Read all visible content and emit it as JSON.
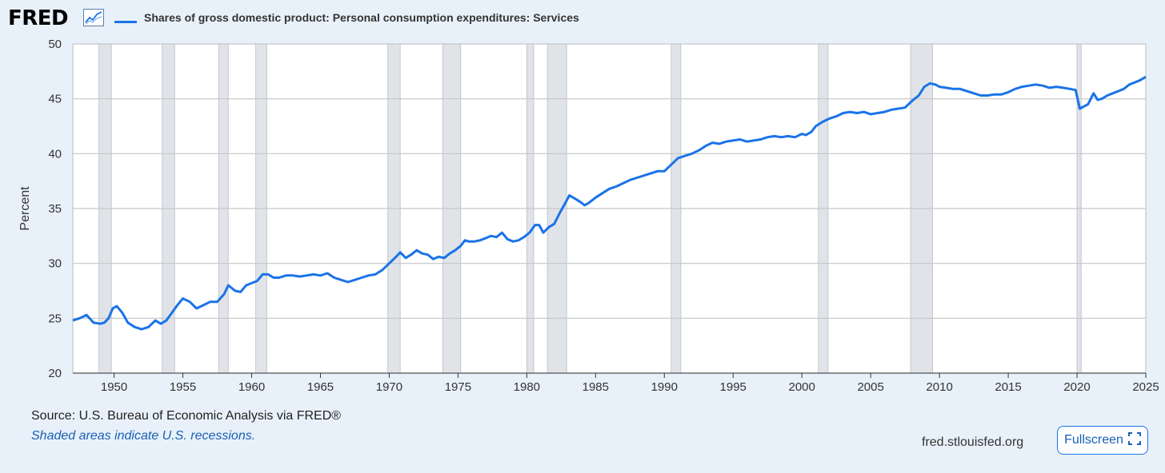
{
  "header": {
    "logo": "FRED",
    "series_title": "Shares of gross domestic product: Personal consumption expenditures: Services"
  },
  "footer": {
    "source": "Source: U.S. Bureau of Economic Analysis via FRED®",
    "recession_note": "Shaded areas indicate U.S. recessions.",
    "site": "fred.stlouisfed.org",
    "fullscreen_label": "Fullscreen"
  },
  "colors": {
    "line": "#1a73e8",
    "recession_fill": "#e0e4e9",
    "grid": "#c6c6c6",
    "background": "#e8f1fa"
  },
  "chart_data": {
    "type": "line",
    "title": "Shares of gross domestic product: Personal consumption expenditures: Services",
    "ylabel": "Percent",
    "xlim": [
      1947,
      2025
    ],
    "ylim": [
      20,
      50
    ],
    "y_ticks": [
      20,
      25,
      30,
      35,
      40,
      45,
      50
    ],
    "x_ticks": [
      1950,
      1955,
      1960,
      1965,
      1970,
      1975,
      1980,
      1985,
      1990,
      1995,
      2000,
      2005,
      2010,
      2015,
      2020,
      2025
    ],
    "grid": true,
    "recessions": [
      [
        1948.9,
        1949.8
      ],
      [
        1953.5,
        1954.4
      ],
      [
        1957.6,
        1958.3
      ],
      [
        1960.3,
        1961.1
      ],
      [
        1969.9,
        1970.8
      ],
      [
        1973.9,
        1975.2
      ],
      [
        1980.0,
        1980.5
      ],
      [
        1981.5,
        1982.9
      ],
      [
        1990.5,
        1991.2
      ],
      [
        2001.2,
        2001.9
      ],
      [
        2007.9,
        2009.5
      ],
      [
        2020.0,
        2020.3
      ]
    ],
    "series": [
      {
        "x": [
          1947.0,
          1947.5,
          1948.0,
          1948.5,
          1949.0,
          1949.3,
          1949.6,
          1949.9,
          1950.2,
          1950.6,
          1951.0,
          1951.5,
          1952.0,
          1952.5,
          1953.0,
          1953.4,
          1953.8,
          1954.2,
          1954.6,
          1955.0,
          1955.5,
          1956.0,
          1956.5,
          1957.0,
          1957.5,
          1958.0,
          1958.3,
          1958.8,
          1959.2,
          1959.6,
          1960.0,
          1960.4,
          1960.8,
          1961.2,
          1961.6,
          1962.0,
          1962.5,
          1963.0,
          1963.5,
          1964.0,
          1964.5,
          1965.0,
          1965.5,
          1966.0,
          1966.5,
          1967.0,
          1967.5,
          1968.0,
          1968.5,
          1969.0,
          1969.5,
          1970.0,
          1970.5,
          1970.8,
          1971.2,
          1971.6,
          1972.0,
          1972.4,
          1972.8,
          1973.2,
          1973.6,
          1974.0,
          1974.4,
          1974.8,
          1975.2,
          1975.5,
          1975.8,
          1976.2,
          1976.6,
          1977.0,
          1977.4,
          1977.8,
          1978.2,
          1978.6,
          1979.0,
          1979.4,
          1979.8,
          1980.2,
          1980.6,
          1980.9,
          1981.2,
          1981.6,
          1982.0,
          1982.4,
          1982.8,
          1983.1,
          1983.5,
          1983.9,
          1984.2,
          1984.5,
          1985.0,
          1985.5,
          1986.0,
          1986.5,
          1987.0,
          1987.5,
          1988.0,
          1988.5,
          1989.0,
          1989.5,
          1990.0,
          1990.5,
          1991.0,
          1991.5,
          1992.0,
          1992.5,
          1993.0,
          1993.5,
          1994.0,
          1994.5,
          1995.0,
          1995.5,
          1996.0,
          1996.5,
          1997.0,
          1997.5,
          1998.0,
          1998.5,
          1999.0,
          1999.5,
          2000.0,
          2000.3,
          2000.7,
          2001.0,
          2001.5,
          2002.0,
          2002.5,
          2003.0,
          2003.5,
          2004.0,
          2004.5,
          2005.0,
          2005.5,
          2006.0,
          2006.5,
          2007.0,
          2007.5,
          2008.0,
          2008.5,
          2008.9,
          2009.3,
          2009.7,
          2010.0,
          2010.5,
          2011.0,
          2011.5,
          2012.0,
          2012.5,
          2013.0,
          2013.5,
          2014.0,
          2014.5,
          2015.0,
          2015.5,
          2016.0,
          2016.5,
          2017.0,
          2017.5,
          2018.0,
          2018.5,
          2019.0,
          2019.5,
          2019.9,
          2020.2,
          2020.5,
          2020.8,
          2021.2,
          2021.5,
          2021.8,
          2022.2,
          2022.6,
          2023.0,
          2023.4,
          2023.8,
          2024.2,
          2024.6,
          2025.0
        ],
        "y": [
          24.8,
          25.0,
          25.3,
          24.6,
          24.5,
          24.6,
          25.0,
          25.9,
          26.1,
          25.5,
          24.6,
          24.2,
          24.0,
          24.2,
          24.8,
          24.5,
          24.8,
          25.5,
          26.2,
          26.8,
          26.5,
          25.9,
          26.2,
          26.5,
          26.5,
          27.2,
          28.0,
          27.5,
          27.4,
          28.0,
          28.2,
          28.4,
          29.0,
          29.0,
          28.7,
          28.7,
          28.9,
          28.9,
          28.8,
          28.9,
          29.0,
          28.9,
          29.1,
          28.7,
          28.5,
          28.3,
          28.5,
          28.7,
          28.9,
          29.0,
          29.4,
          30.0,
          30.6,
          31.0,
          30.5,
          30.8,
          31.2,
          30.9,
          30.8,
          30.4,
          30.6,
          30.5,
          30.9,
          31.2,
          31.6,
          32.1,
          32.0,
          32.0,
          32.1,
          32.3,
          32.5,
          32.4,
          32.8,
          32.2,
          32.0,
          32.1,
          32.4,
          32.8,
          33.5,
          33.5,
          32.8,
          33.3,
          33.6,
          34.6,
          35.5,
          36.2,
          35.9,
          35.6,
          35.3,
          35.5,
          36.0,
          36.4,
          36.8,
          37.0,
          37.3,
          37.6,
          37.8,
          38.0,
          38.2,
          38.4,
          38.4,
          39.0,
          39.6,
          39.8,
          40.0,
          40.3,
          40.7,
          41.0,
          40.9,
          41.1,
          41.2,
          41.3,
          41.1,
          41.2,
          41.3,
          41.5,
          41.6,
          41.5,
          41.6,
          41.5,
          41.8,
          41.7,
          42.0,
          42.5,
          42.9,
          43.2,
          43.4,
          43.7,
          43.8,
          43.7,
          43.8,
          43.6,
          43.7,
          43.8,
          44.0,
          44.1,
          44.2,
          44.8,
          45.3,
          46.1,
          46.4,
          46.3,
          46.1,
          46.0,
          45.9,
          45.9,
          45.7,
          45.5,
          45.3,
          45.3,
          45.4,
          45.4,
          45.6,
          45.9,
          46.1,
          46.2,
          46.3,
          46.2,
          46.0,
          46.1,
          46.0,
          45.9,
          45.8,
          44.1,
          44.3,
          44.5,
          45.5,
          44.9,
          45.0,
          45.3,
          45.5,
          45.7,
          45.9,
          46.3,
          46.5,
          46.7,
          47.0
        ]
      }
    ]
  }
}
